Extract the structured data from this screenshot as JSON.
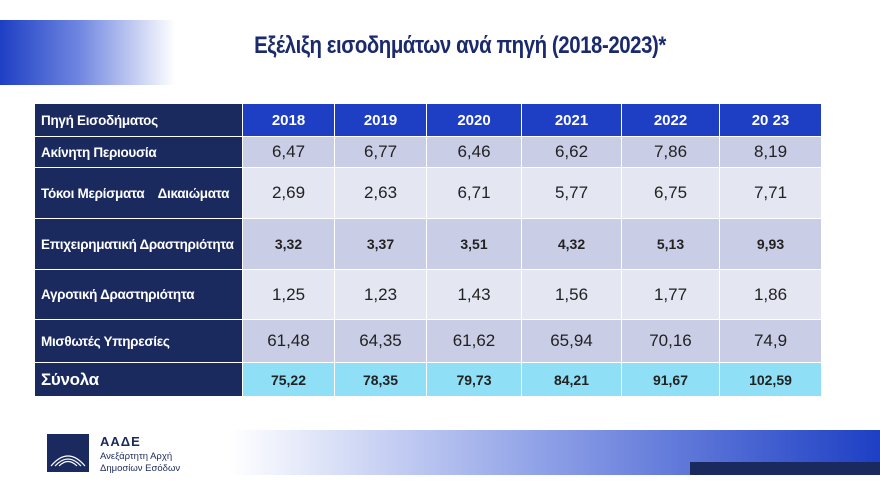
{
  "title": "Εξέλιξη εισοδημάτων ανά πηγή (2018-2023)*",
  "table": {
    "header": [
      "Πηγή Εισοδήματος",
      "2018",
      "2019",
      "2020",
      "2021",
      "2022",
      "20 23"
    ],
    "rows": [
      [
        "Ακίνητη Περιουσία",
        "6,47",
        "6,77",
        "6,46",
        "6,62",
        "7,86",
        "8,19"
      ],
      [
        "Τόκοι Μερίσματα    Δικαιώματα",
        "2,69",
        "2,63",
        "6,71",
        "5,77",
        "6,75",
        "7,71"
      ],
      [
        "Επιχειρηματική Δραστηριότητα",
        "3,32",
        "3,37",
        "3,51",
        "4,32",
        "5,13",
        "9,93"
      ],
      [
        "Αγροτική Δραστηριότητα",
        "1,25",
        "1,23",
        "1,43",
        "1,56",
        "1,77",
        "1,86"
      ],
      [
        "Μισθωτές Υπηρεσίες",
        "61,48",
        "64,35",
        "61,62",
        "65,94",
        "70,16",
        "74,9"
      ],
      [
        "Σύνολα",
        "75,22",
        "78,35",
        "79,73",
        "84,21",
        "91,67",
        "102,59"
      ]
    ]
  },
  "logo": {
    "name": "ΑΑΔΕ",
    "line1": "Ανεξάρτητη Αρχή",
    "line2": "Δημοσίων Εσόδων"
  }
}
